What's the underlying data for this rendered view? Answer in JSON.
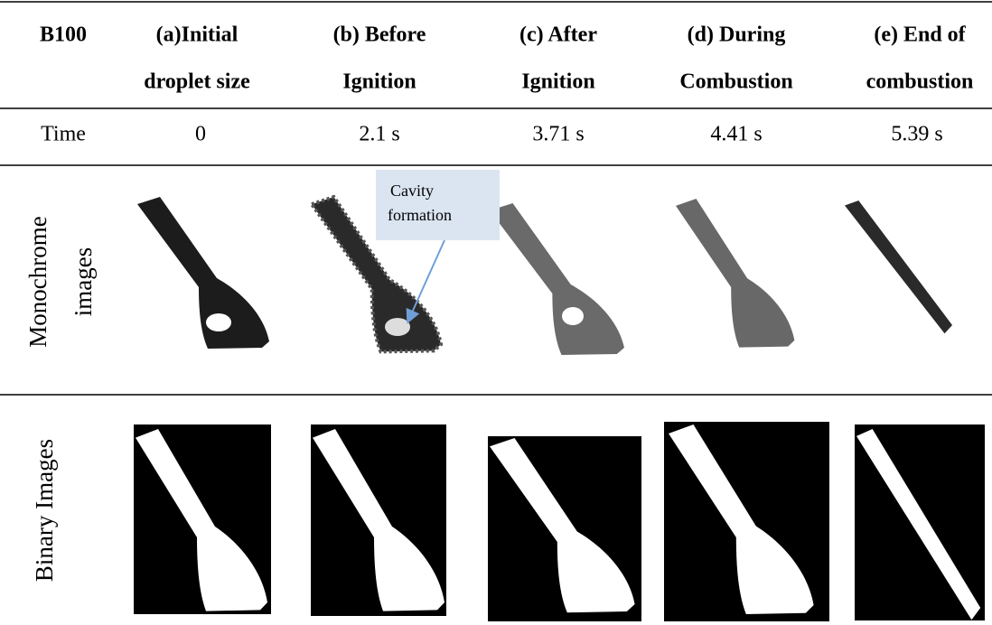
{
  "header": {
    "cells": [
      [
        "B100"
      ],
      [
        "(a)Initial",
        "droplet size"
      ],
      [
        "(b) Before",
        "Ignition"
      ],
      [
        "(c) After",
        "Ignition"
      ],
      [
        "(d) During",
        "Combustion"
      ],
      [
        "(e) End of",
        "combustion"
      ]
    ]
  },
  "time_row": {
    "label": "Time",
    "values": [
      "0",
      "2.1 s",
      "3.71 s",
      "4.41 s",
      "5.39 s"
    ]
  },
  "monochrome_row": {
    "label": [
      "Monochrome",
      "images"
    ]
  },
  "binary_row": {
    "label": "Binary Images"
  },
  "annotation": {
    "text": [
      "Cavity",
      "formation"
    ]
  }
}
